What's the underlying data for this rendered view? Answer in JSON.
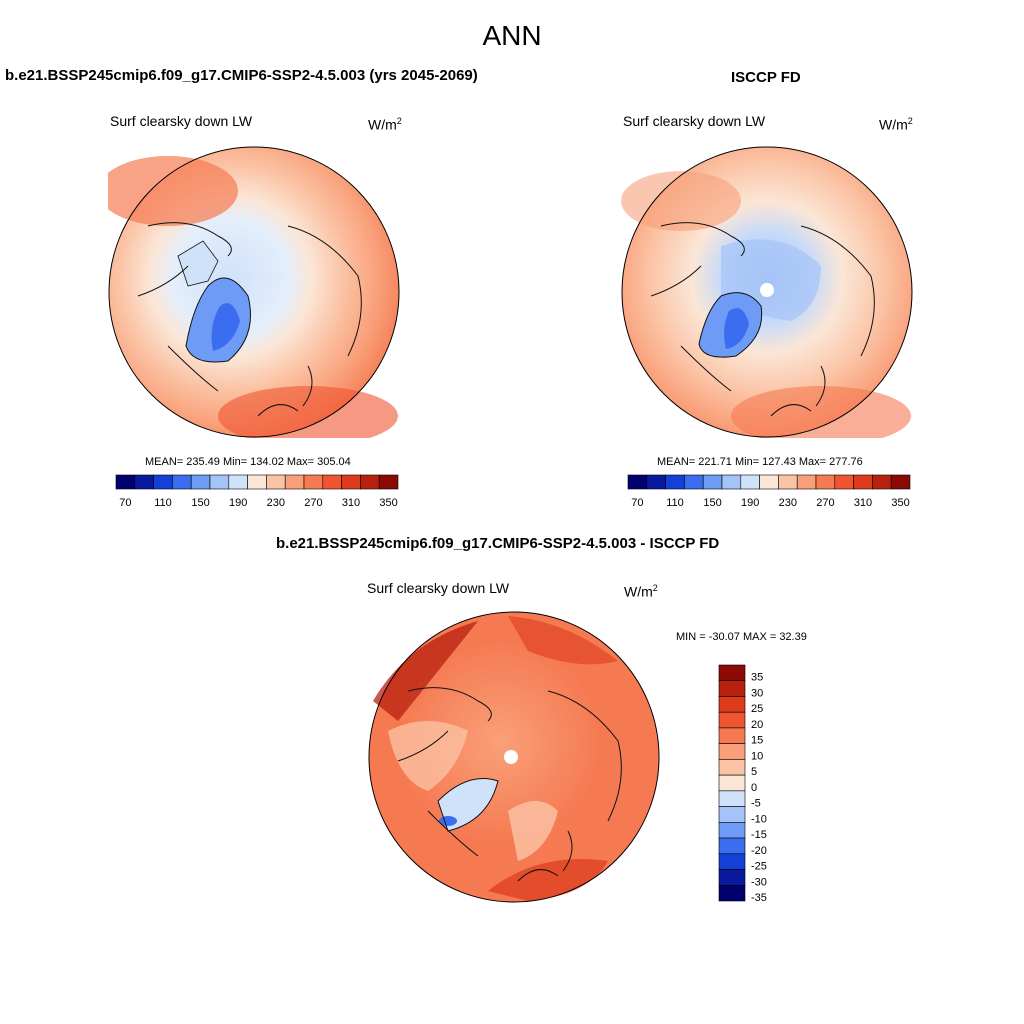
{
  "title": "ANN",
  "colors": {
    "cbar_left": [
      "#00006e",
      "#0a1a9e",
      "#1540d8",
      "#3a6df0",
      "#6e9bf5",
      "#a5c3f7",
      "#d0e2fa",
      "#fbe6d6",
      "#fbc4a6",
      "#f9a07a",
      "#f57a52",
      "#ee5530",
      "#dd3b1c",
      "#b82010",
      "#8c0a06"
    ],
    "cbar_diff": [
      "#8c0a06",
      "#b82010",
      "#dd3b1c",
      "#ee5530",
      "#f57a52",
      "#f9a07a",
      "#fbc4a6",
      "#fbe6d6",
      "#d0e2fa",
      "#a5c3f7",
      "#6e9bf5",
      "#3a6df0",
      "#1540d8",
      "#0a1a9e",
      "#00006e"
    ]
  },
  "panels": {
    "left": {
      "title": "b.e21.BSSP245cmip6.f09_g17.CMIP6-SSP2-4.5.003 (yrs 2045-2069)",
      "variable": "Surf clearsky down LW",
      "units": "W/m",
      "units_sup": "2",
      "stats": "MEAN= 235.49  Min= 134.02  Max= 305.04",
      "ticks": [
        "70",
        "110",
        "150",
        "190",
        "230",
        "270",
        "310",
        "350"
      ]
    },
    "right": {
      "title": "ISCCP FD",
      "variable": "Surf clearsky down LW",
      "units": "W/m",
      "units_sup": "2",
      "stats": "MEAN= 221.71  Min= 127.43  Max= 277.76",
      "ticks": [
        "70",
        "110",
        "150",
        "190",
        "230",
        "270",
        "310",
        "350"
      ]
    },
    "diff": {
      "title": "b.e21.BSSP245cmip6.f09_g17.CMIP6-SSP2-4.5.003 - ISCCP FD",
      "variable": "Surf clearsky down LW",
      "units": "W/m",
      "units_sup": "2",
      "stats": "MIN = -30.07 MAX =  32.39",
      "ticks": [
        "35",
        "30",
        "25",
        "20",
        "15",
        "10",
        "5",
        "0",
        "-5",
        "-10",
        "-15",
        "-20",
        "-25",
        "-30",
        "-35"
      ]
    }
  }
}
